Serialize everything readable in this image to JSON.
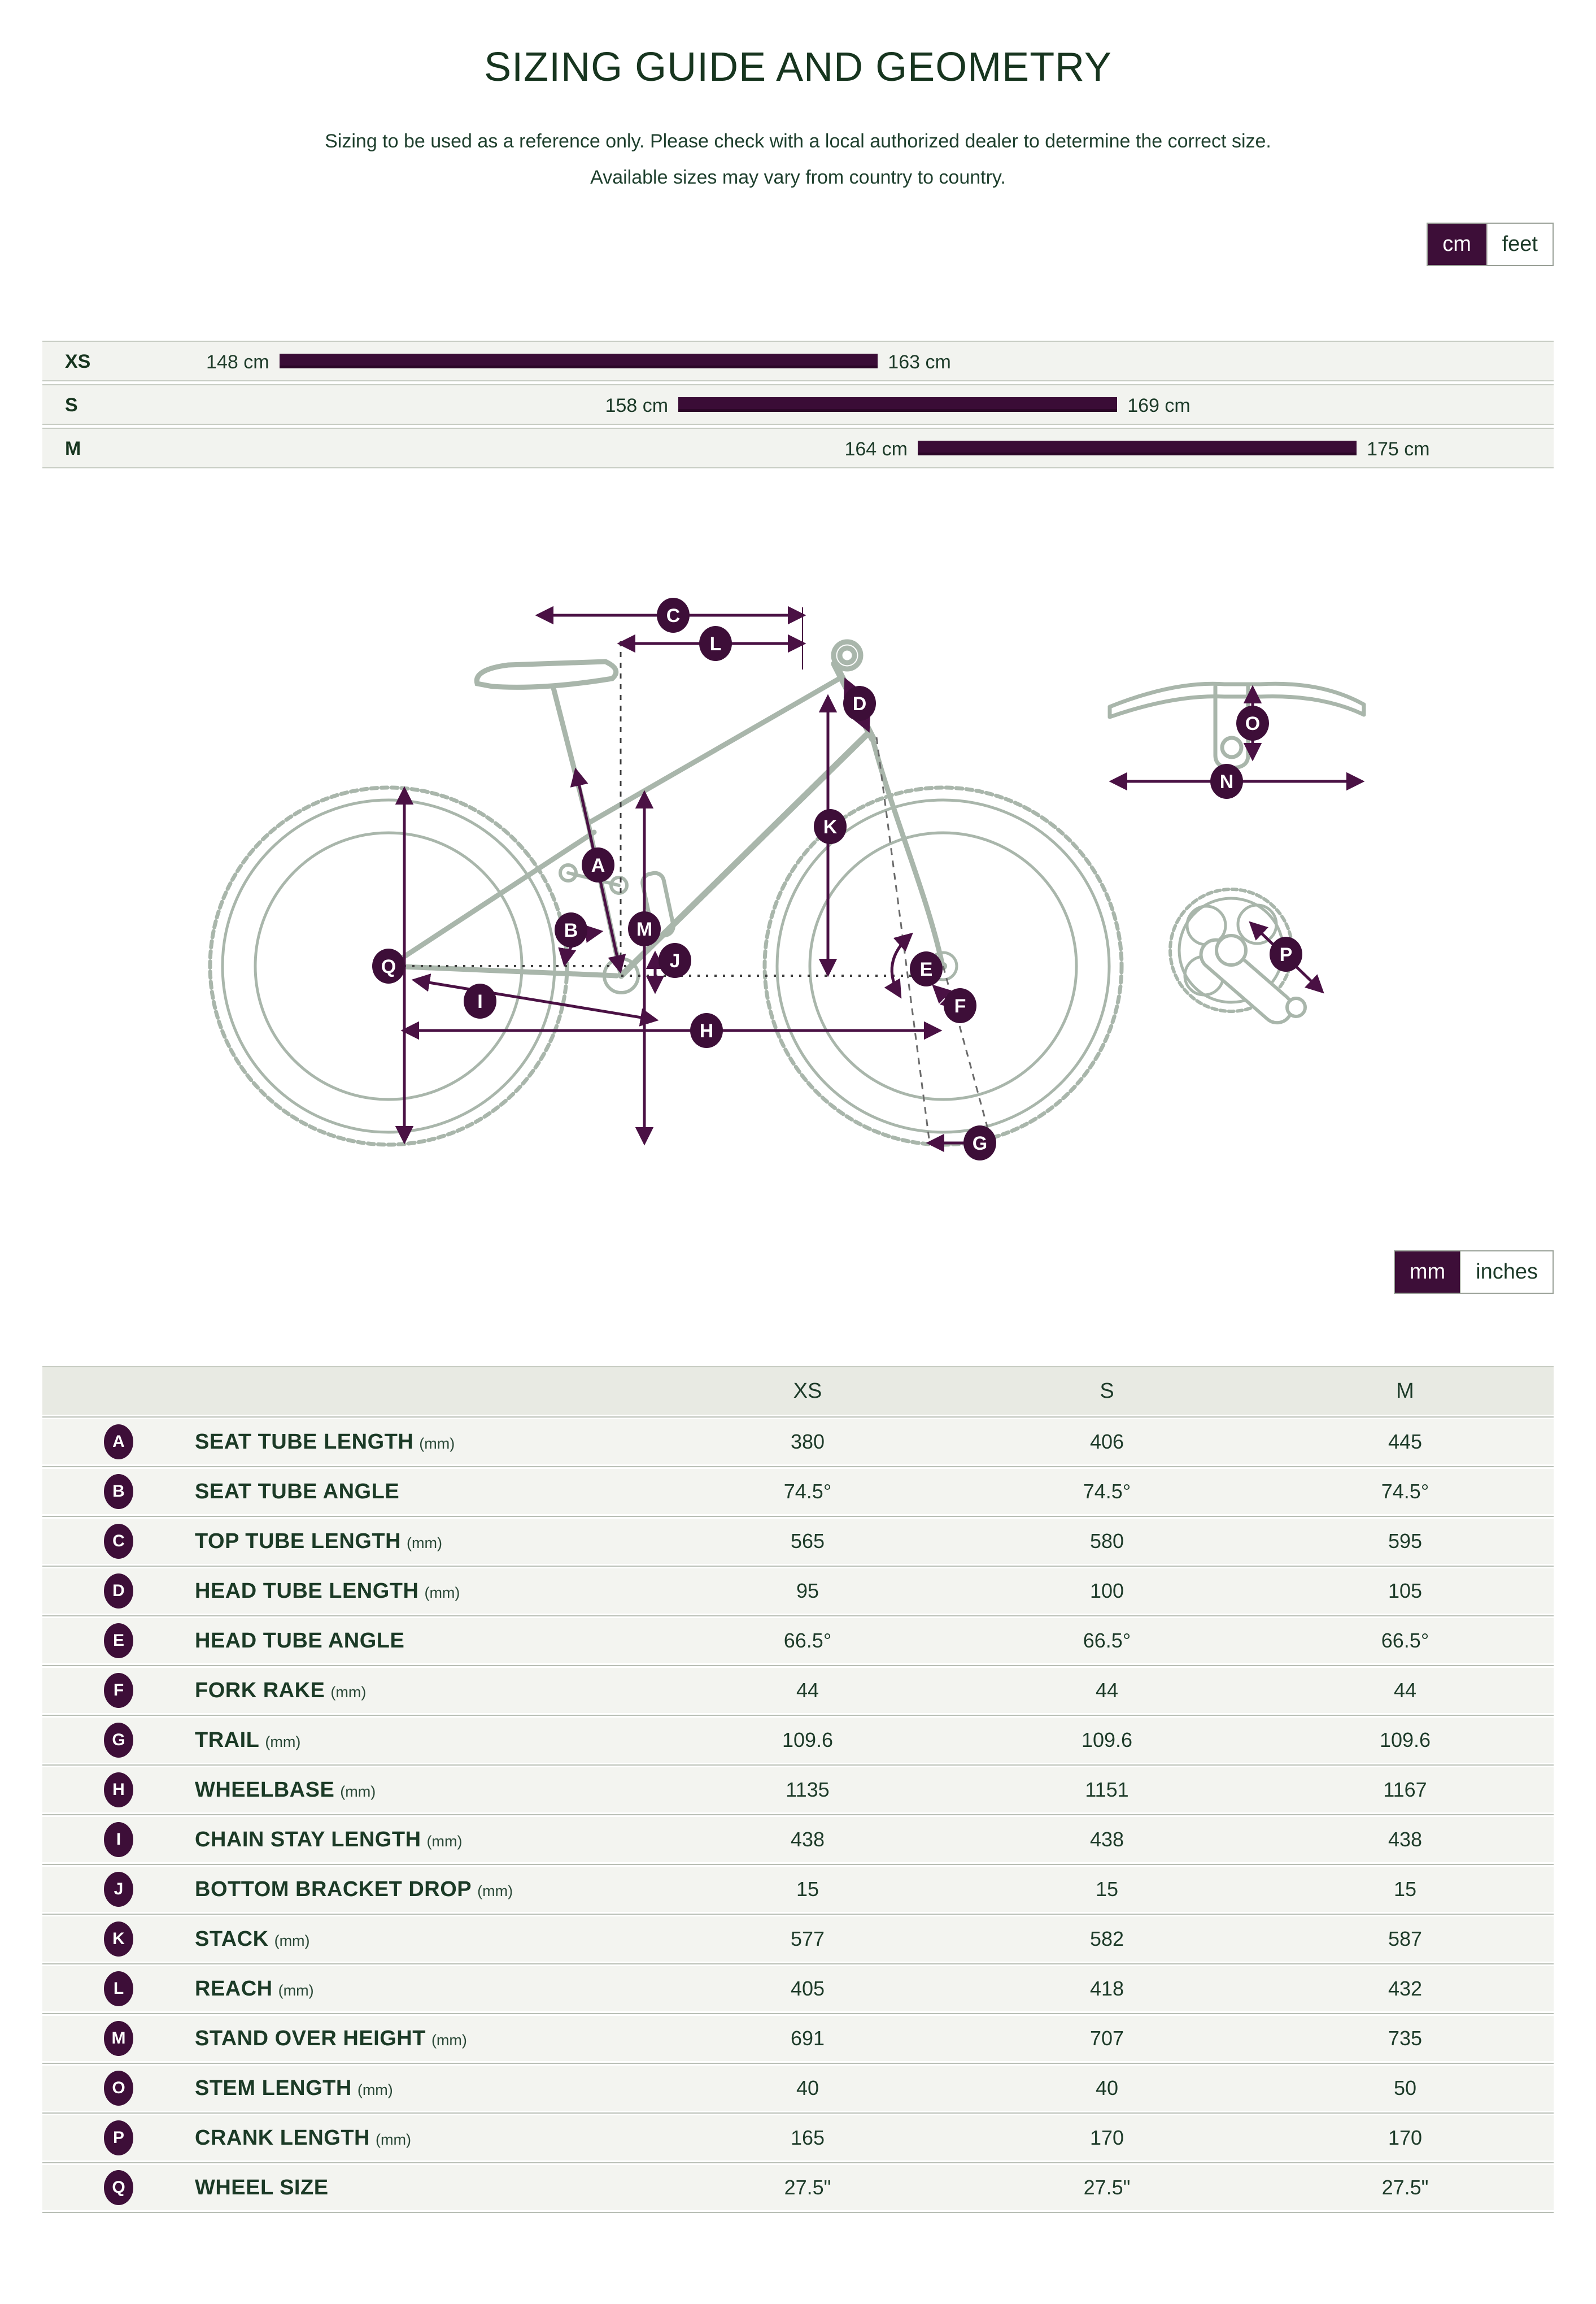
{
  "page": {
    "title": "SIZING GUIDE AND GEOMETRY",
    "subtitle_line1": "Sizing to be used as a reference only. Please check with a local authorized dealer to determine the correct size.",
    "subtitle_line2": "Available sizes may vary from country to country."
  },
  "colors": {
    "accent_purple": "#3d0e38",
    "arrow_purple": "#4a1144",
    "text_green": "#1d3b29",
    "row_bg": "#f3f4f0",
    "header_bg": "#e8eae3",
    "bike_outline": "#a9b6ab"
  },
  "toggles": {
    "height_units": {
      "options": [
        "cm",
        "feet"
      ],
      "selected": "cm"
    },
    "geometry_units": {
      "options": [
        "mm",
        "inches"
      ],
      "selected": "mm"
    }
  },
  "chart_data": {
    "type": "bar",
    "title": "Rider height range per frame size",
    "orientation": "horizontal",
    "x_range_cm": [
      141,
      181
    ],
    "categories": [
      "XS",
      "S",
      "M"
    ],
    "rows": [
      {
        "size": "XS",
        "min": 148,
        "max": 163,
        "min_label": "148 cm",
        "max_label": "163 cm"
      },
      {
        "size": "S",
        "min": 158,
        "max": 169,
        "min_label": "158 cm",
        "max_label": "169 cm"
      },
      {
        "size": "M",
        "min": 164,
        "max": 175,
        "min_label": "164 cm",
        "max_label": "175 cm"
      }
    ]
  },
  "diagram": {
    "badges": {
      "a": "A",
      "b": "B",
      "c": "C",
      "d": "D",
      "e": "E",
      "f": "F",
      "g": "G",
      "h": "H",
      "i": "I",
      "j": "J",
      "k": "K",
      "l": "L",
      "m": "M",
      "n": "N",
      "o": "O",
      "p": "P",
      "q": "Q"
    }
  },
  "table": {
    "columns": [
      "XS",
      "S",
      "M"
    ],
    "rows": [
      {
        "letter": "A",
        "label": "SEAT TUBE LENGTH",
        "unit": "(mm)",
        "values": [
          "380",
          "406",
          "445"
        ]
      },
      {
        "letter": "B",
        "label": "SEAT TUBE ANGLE",
        "unit": "",
        "values": [
          "74.5°",
          "74.5°",
          "74.5°"
        ]
      },
      {
        "letter": "C",
        "label": "TOP TUBE LENGTH",
        "unit": "(mm)",
        "values": [
          "565",
          "580",
          "595"
        ]
      },
      {
        "letter": "D",
        "label": "HEAD TUBE LENGTH",
        "unit": "(mm)",
        "values": [
          "95",
          "100",
          "105"
        ]
      },
      {
        "letter": "E",
        "label": "HEAD TUBE ANGLE",
        "unit": "",
        "values": [
          "66.5°",
          "66.5°",
          "66.5°"
        ]
      },
      {
        "letter": "F",
        "label": "FORK RAKE",
        "unit": "(mm)",
        "values": [
          "44",
          "44",
          "44"
        ]
      },
      {
        "letter": "G",
        "label": "TRAIL",
        "unit": "(mm)",
        "values": [
          "109.6",
          "109.6",
          "109.6"
        ]
      },
      {
        "letter": "H",
        "label": "WHEELBASE",
        "unit": "(mm)",
        "values": [
          "1135",
          "1151",
          "1167"
        ]
      },
      {
        "letter": "I",
        "label": "CHAIN STAY LENGTH",
        "unit": "(mm)",
        "values": [
          "438",
          "438",
          "438"
        ]
      },
      {
        "letter": "J",
        "label": "BOTTOM BRACKET DROP",
        "unit": "(mm)",
        "values": [
          "15",
          "15",
          "15"
        ]
      },
      {
        "letter": "K",
        "label": "STACK",
        "unit": "(mm)",
        "values": [
          "577",
          "582",
          "587"
        ]
      },
      {
        "letter": "L",
        "label": "REACH",
        "unit": "(mm)",
        "values": [
          "405",
          "418",
          "432"
        ]
      },
      {
        "letter": "M",
        "label": "STAND OVER HEIGHT",
        "unit": "(mm)",
        "values": [
          "691",
          "707",
          "735"
        ]
      },
      {
        "letter": "O",
        "label": "STEM LENGTH",
        "unit": "(mm)",
        "values": [
          "40",
          "40",
          "50"
        ]
      },
      {
        "letter": "P",
        "label": "CRANK LENGTH",
        "unit": "(mm)",
        "values": [
          "165",
          "170",
          "170"
        ]
      },
      {
        "letter": "Q",
        "label": "WHEEL SIZE",
        "unit": "",
        "values": [
          "27.5\"",
          "27.5\"",
          "27.5\""
        ]
      }
    ]
  }
}
